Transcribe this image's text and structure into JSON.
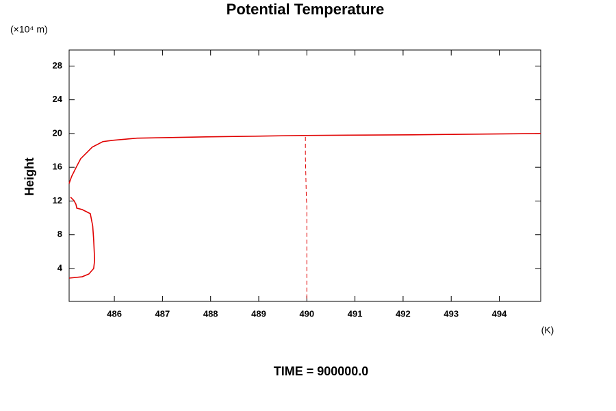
{
  "chart_data": {
    "type": "line",
    "title": "Potential Temperature",
    "y_unit": "(×10⁴ m)",
    "y_label": "Height",
    "x_unit": "(K)",
    "footer": "TIME = 900000.0",
    "xlim": [
      485.06,
      494.86
    ],
    "ylim": [
      0.1,
      29.9
    ],
    "xticks": [
      486,
      487,
      488,
      489,
      490,
      491,
      492,
      493,
      494
    ],
    "yticks": [
      4,
      8,
      12,
      16,
      20,
      24,
      28
    ],
    "grid": false,
    "series": [
      {
        "color": "#e00000",
        "dash": false,
        "x": [
          485.06,
          485.33,
          485.47,
          485.57,
          485.59,
          485.57,
          485.55,
          485.5,
          485.33,
          485.22,
          485.2,
          485.16,
          485.09
        ],
        "values": [
          2.86,
          3.02,
          3.35,
          4.0,
          4.98,
          7.41,
          9.04,
          10.5,
          10.99,
          11.15,
          11.64,
          12.05,
          12.46
        ]
      },
      {
        "color": "#e00000",
        "dash": false,
        "x": [
          485.06,
          485.11,
          485.21,
          485.3,
          485.4,
          485.54,
          485.76,
          485.97,
          486.47,
          487.9,
          489.9,
          492.19,
          494.86
        ],
        "values": [
          14.08,
          14.89,
          16.03,
          17.01,
          17.58,
          18.39,
          19.04,
          19.2,
          19.45,
          19.6,
          19.77,
          19.85,
          20.0
        ]
      },
      {
        "color": "#e00000",
        "dash": true,
        "x": [
          489.97,
          489.97,
          489.99,
          490.0,
          490.0
        ],
        "values": [
          19.6,
          17.17,
          12.29,
          11.48,
          0.1
        ]
      }
    ]
  }
}
